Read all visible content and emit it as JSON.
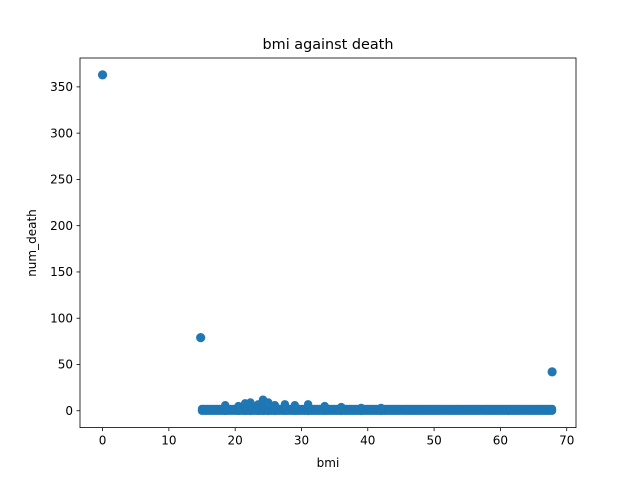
{
  "chart_data": {
    "type": "scatter",
    "title": "bmi against death",
    "xlabel": "bmi",
    "ylabel": "num_death",
    "xlim": [
      -3.4,
      71.4
    ],
    "ylim": [
      -18.2,
      381.2
    ],
    "xticks": [
      0,
      10,
      20,
      30,
      40,
      50,
      60,
      70
    ],
    "yticks": [
      0,
      50,
      100,
      150,
      200,
      250,
      300,
      350
    ],
    "grid": false,
    "marker_color": "#1f77b4",
    "series": [
      {
        "outliers": [
          {
            "x": 0,
            "y": 363
          },
          {
            "x": 14.8,
            "y": 79
          },
          {
            "x": 67.8,
            "y": 42
          }
        ],
        "band": {
          "x_min": 15,
          "x_max": 68,
          "y_min": 0,
          "y_max": 2
        },
        "bumps": [
          {
            "x": 18.5,
            "y": 6
          },
          {
            "x": 20.5,
            "y": 5
          },
          {
            "x": 21.5,
            "y": 8
          },
          {
            "x": 22.3,
            "y": 9
          },
          {
            "x": 23.5,
            "y": 7
          },
          {
            "x": 24.2,
            "y": 12
          },
          {
            "x": 25.0,
            "y": 9
          },
          {
            "x": 26.0,
            "y": 6
          },
          {
            "x": 27.5,
            "y": 7
          },
          {
            "x": 29.0,
            "y": 6
          },
          {
            "x": 31.0,
            "y": 7
          },
          {
            "x": 33.5,
            "y": 5
          },
          {
            "x": 36.0,
            "y": 4
          },
          {
            "x": 39.0,
            "y": 3
          },
          {
            "x": 42.0,
            "y": 3
          }
        ]
      }
    ]
  }
}
